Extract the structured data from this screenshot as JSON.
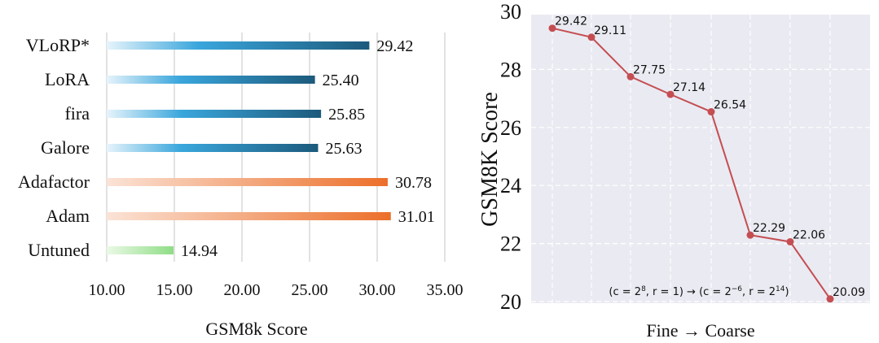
{
  "chart_data": [
    {
      "type": "bar",
      "orientation": "horizontal",
      "categories": [
        "VLoRP*",
        "LoRA",
        "fira",
        "Galore",
        "Adafactor",
        "Adam",
        "Untuned"
      ],
      "values": [
        29.42,
        25.4,
        25.85,
        25.63,
        30.78,
        31.01,
        14.94
      ],
      "value_labels": [
        "29.42",
        "25.40",
        "25.85",
        "25.63",
        "30.78",
        "31.01",
        "14.94"
      ],
      "xlabel": "GSM8k Score",
      "xlim": [
        10,
        35
      ],
      "xticks": [
        10,
        15,
        20,
        25,
        30,
        35
      ],
      "xtick_labels": [
        "10.00",
        "15.00",
        "20.00",
        "25.00",
        "30.00",
        "35.00"
      ],
      "grid": "vertical",
      "colors": {
        "blue_light": "#e6f4fb",
        "blue_mid": "#3aa6dc",
        "blue_dark": "#1c5a7c",
        "orange_light": "#fbe3d6",
        "orange_dark": "#ec6f2a",
        "green_light": "#eaf9e6",
        "green_dark": "#8fdd86"
      },
      "bar_color_groups": [
        "blue",
        "blue",
        "blue",
        "blue",
        "orange",
        "orange",
        "green"
      ]
    },
    {
      "type": "line",
      "x": [
        1,
        2,
        3,
        4,
        5,
        6,
        7,
        8
      ],
      "y": [
        29.42,
        29.11,
        27.75,
        27.14,
        26.54,
        22.29,
        22.06,
        20.09
      ],
      "point_labels": [
        "29.42",
        "29.11",
        "27.75",
        "27.14",
        "26.54",
        "22.29",
        "22.06",
        "20.09"
      ],
      "ylabel": "GSM8K Score",
      "xlabel": "Fine → Coarse",
      "ylim": [
        20,
        30
      ],
      "yticks": [
        20,
        22,
        24,
        26,
        28,
        30
      ],
      "ytick_labels": [
        "20",
        "22",
        "24",
        "26",
        "28",
        "30"
      ],
      "grid": true,
      "annotation": "(c = 2^8, r = 1) → (c = 2^−6, r = 2^14)",
      "colors": {
        "line": "#c44e52",
        "background": "#eaeaf2",
        "grid": "#ffffff"
      }
    }
  ]
}
